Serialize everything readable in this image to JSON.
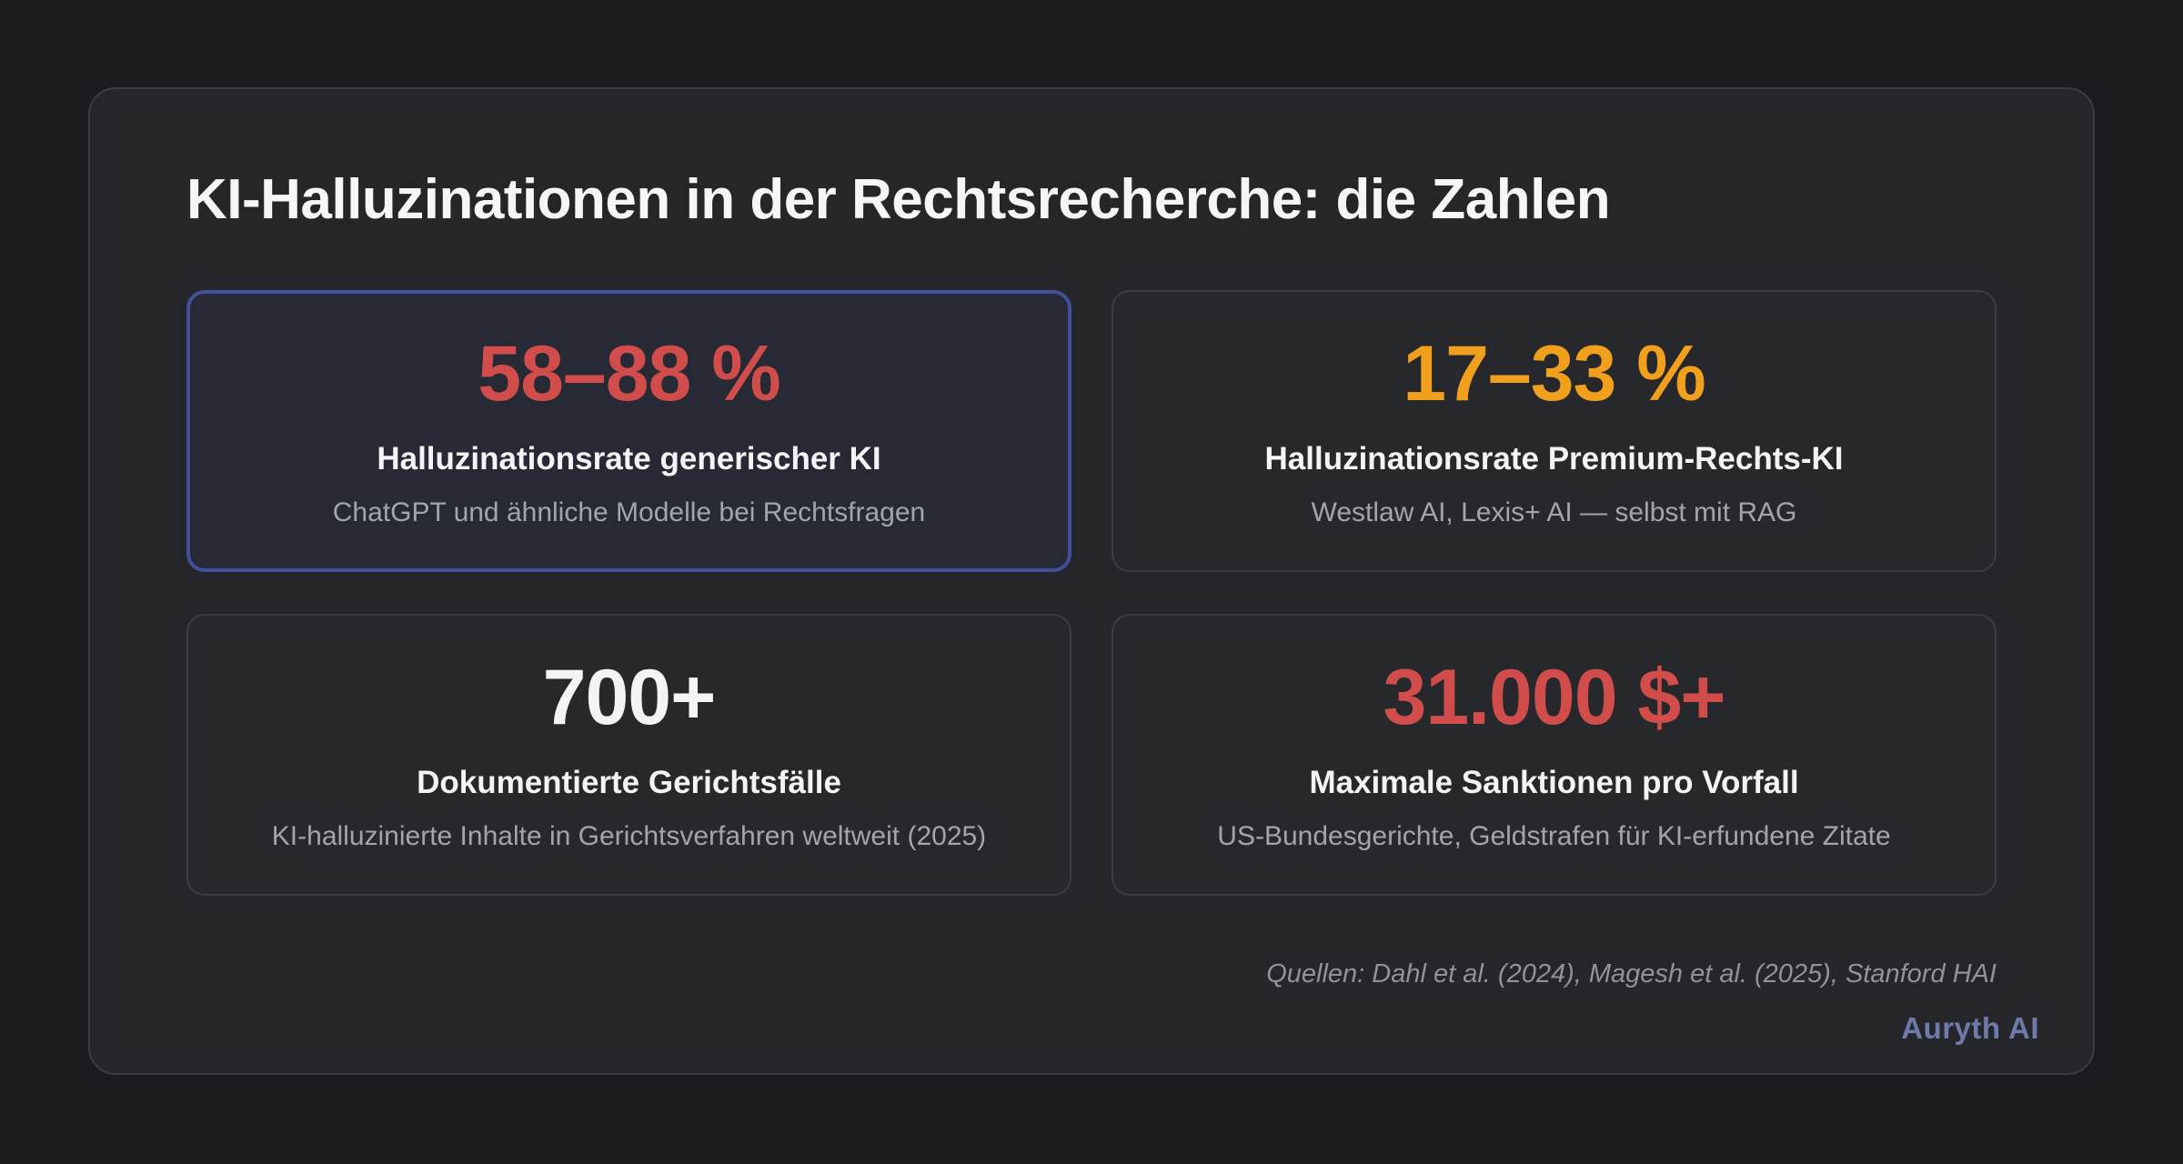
{
  "page": {
    "title": "KI-Halluzinationen in der Rechtsrecherche: die Zahlen"
  },
  "stats": [
    {
      "value": "58–88 %",
      "label": "Halluzinationsrate generischer KI",
      "description": "ChatGPT und ähnliche Modelle bei Rechtsfragen",
      "value_color": "#d14d4b",
      "highlighted": true
    },
    {
      "value": "17–33 %",
      "label": "Halluzinationsrate Premium-Rechts-KI",
      "description": "Westlaw AI, Lexis+ AI — selbst mit RAG",
      "value_color": "#f0a01c",
      "highlighted": false
    },
    {
      "value": "700+",
      "label": "Dokumentierte Gerichtsfälle",
      "description": "KI-halluzinierte Inhalte in Gerichtsverfahren weltweit (2025)",
      "value_color": "#f2f4f6",
      "highlighted": false
    },
    {
      "value": "31.000 $+",
      "label": "Maximale Sanktionen pro Vorfall",
      "description": "US-Bundesgerichte, Geldstrafen für KI-erfundene Zitate",
      "value_color": "#d14d4b",
      "highlighted": false
    }
  ],
  "footer": {
    "sources": "Quellen: Dahl et al. (2024), Magesh et al. (2025), Stanford HAI",
    "brand": "Auryth AI"
  },
  "colors": {
    "page_background": "#1a1b1e",
    "panel_background": "#25262a",
    "card_background": "#26282c",
    "card_border": "#3a3d43",
    "highlight_card_background": "#272a34",
    "highlight_border": "#41509c",
    "stat_red": "#d14d4b",
    "stat_orange": "#f0a01c",
    "stat_white": "#f2f4f6",
    "label_text": "#f2f4f6",
    "description_text": "#a1a5ad",
    "sources_text": "#8f939b",
    "brand_text": "#6f7aab"
  }
}
